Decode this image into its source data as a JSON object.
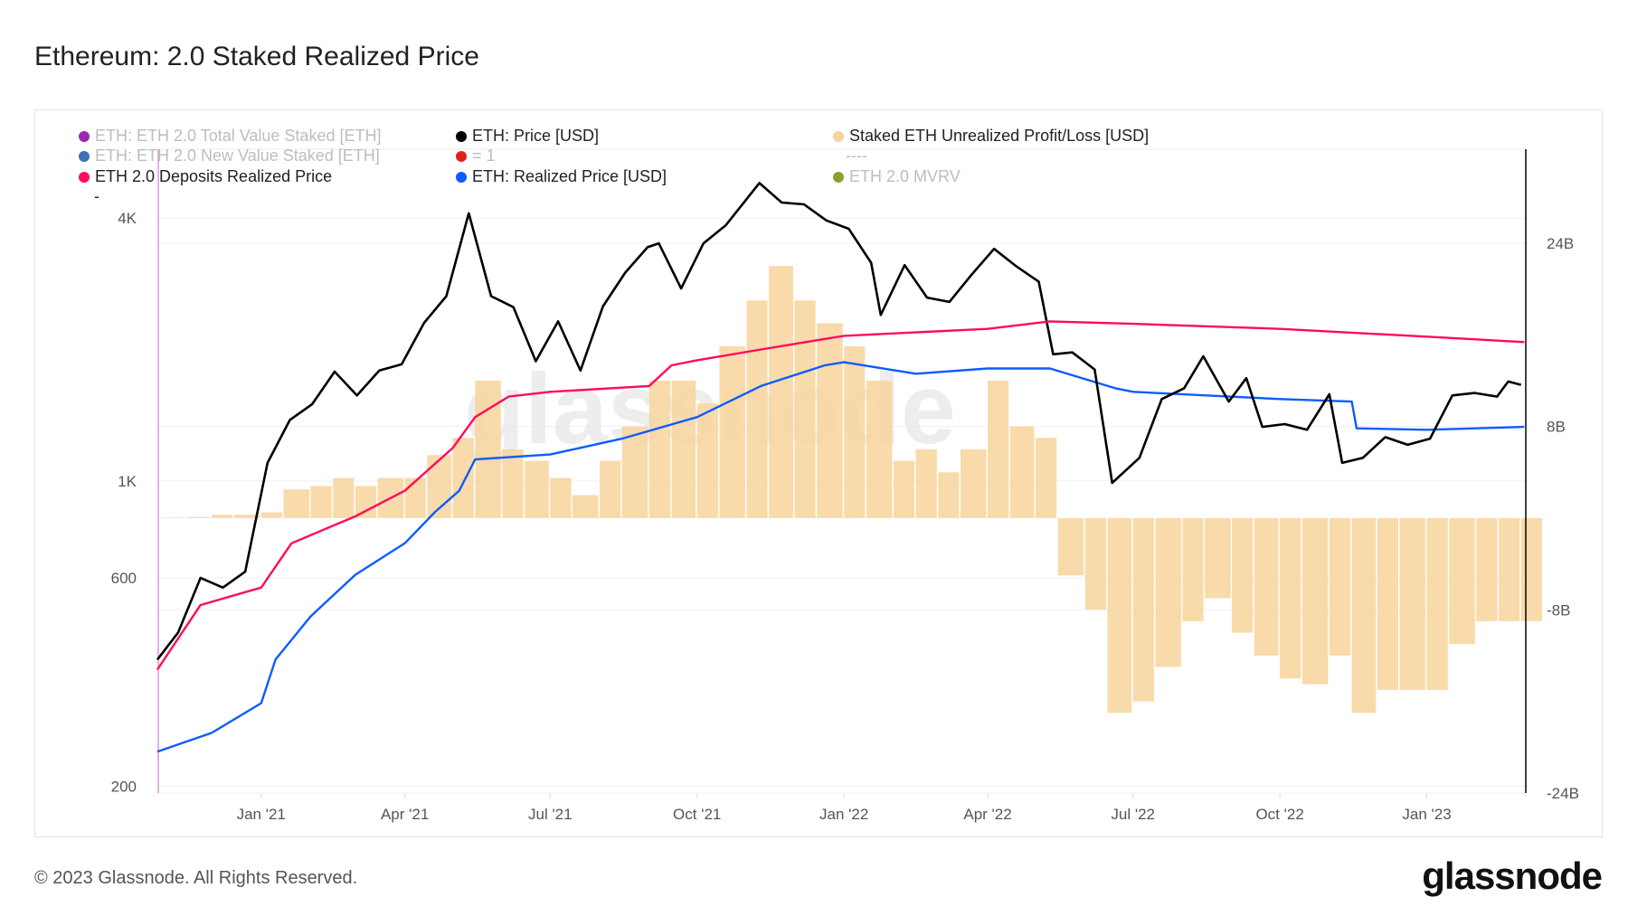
{
  "title": "Ethereum: 2.0 Staked Realized Price",
  "footer": "© 2023 Glassnode. All Rights Reserved.",
  "logo": "glassnode",
  "watermark": "glassnode",
  "legend": [
    {
      "label": "ETH: ETH 2.0 Total Value Staked [ETH]",
      "color": "#9c27b0",
      "active": false
    },
    {
      "label": "ETH: Price [USD]",
      "color": "#000000",
      "active": true
    },
    {
      "label": "Staked ETH Unrealized Profit/Loss [USD]",
      "color": "#f8d39b",
      "active": true
    },
    {
      "label": "ETH: ETH 2.0 New Value Staked [ETH]",
      "color": "#3f6fb5",
      "active": false
    },
    {
      "label": "= 1",
      "color": "#e0221b",
      "active": false
    },
    {
      "label": "----",
      "color": null,
      "active": false
    },
    {
      "label": "ETH 2.0 Deposits Realized Price",
      "color": "#ff0a5c",
      "active": true
    },
    {
      "label": "ETH: Realized Price [USD]",
      "color": "#0a5cff",
      "active": true
    },
    {
      "label": "ETH 2.0 MVRV",
      "color": "#8fa02a",
      "active": false
    },
    {
      "label": "-",
      "color": null,
      "active": true
    }
  ],
  "chart_data": {
    "type": "line",
    "xlim": [
      "2020-10-28",
      "2023-03-04"
    ],
    "x_ticks": [
      {
        "date": "2021-01-01",
        "label": "Jan '21"
      },
      {
        "date": "2021-04-01",
        "label": "Apr '21"
      },
      {
        "date": "2021-07-01",
        "label": "Jul '21"
      },
      {
        "date": "2021-10-01",
        "label": "Oct '21"
      },
      {
        "date": "2022-01-01",
        "label": "Jan '22"
      },
      {
        "date": "2022-04-01",
        "label": "Apr '22"
      },
      {
        "date": "2022-07-01",
        "label": "Jul '22"
      },
      {
        "date": "2022-10-01",
        "label": "Oct '22"
      },
      {
        "date": "2023-01-01",
        "label": "Jan '23"
      }
    ],
    "y_left": {
      "scale": "log",
      "ylim": [
        193,
        5750
      ],
      "ticks": [
        {
          "value": 200,
          "label": "200"
        },
        {
          "value": 600,
          "label": "600"
        },
        {
          "value": 1000,
          "label": "1K"
        },
        {
          "value": 4000,
          "label": "4K"
        }
      ]
    },
    "y_right": {
      "scale": "linear",
      "ylim": [
        -24,
        32.2
      ],
      "unit": "B",
      "ticks": [
        {
          "value": -24,
          "label": "-24B"
        },
        {
          "value": -8,
          "label": "-8B"
        },
        {
          "value": 8,
          "label": "8B"
        },
        {
          "value": 24,
          "label": "24B"
        }
      ]
    },
    "grid": true,
    "legend_position": "top",
    "series": [
      {
        "name": "ETH: Price [USD]",
        "axis": "left",
        "color": "#000000",
        "points": [
          [
            "2020-10-28",
            390
          ],
          [
            "2020-11-10",
            450
          ],
          [
            "2020-11-24",
            600
          ],
          [
            "2020-12-08",
            570
          ],
          [
            "2020-12-22",
            620
          ],
          [
            "2021-01-05",
            1100
          ],
          [
            "2021-01-19",
            1380
          ],
          [
            "2021-02-02",
            1500
          ],
          [
            "2021-02-16",
            1780
          ],
          [
            "2021-03-02",
            1570
          ],
          [
            "2021-03-16",
            1790
          ],
          [
            "2021-03-30",
            1850
          ],
          [
            "2021-04-13",
            2300
          ],
          [
            "2021-04-27",
            2650
          ],
          [
            "2021-05-11",
            4100
          ],
          [
            "2021-05-25",
            2650
          ],
          [
            "2021-06-08",
            2500
          ],
          [
            "2021-06-22",
            1880
          ],
          [
            "2021-07-06",
            2320
          ],
          [
            "2021-07-20",
            1790
          ],
          [
            "2021-08-03",
            2510
          ],
          [
            "2021-08-17",
            3000
          ],
          [
            "2021-08-31",
            3430
          ],
          [
            "2021-09-07",
            3500
          ],
          [
            "2021-09-21",
            2760
          ],
          [
            "2021-10-05",
            3500
          ],
          [
            "2021-10-19",
            3850
          ],
          [
            "2021-11-09",
            4810
          ],
          [
            "2021-11-23",
            4340
          ],
          [
            "2021-12-07",
            4300
          ],
          [
            "2021-12-21",
            3950
          ],
          [
            "2022-01-04",
            3780
          ],
          [
            "2022-01-18",
            3160
          ],
          [
            "2022-01-24",
            2400
          ],
          [
            "2022-02-08",
            3120
          ],
          [
            "2022-02-22",
            2630
          ],
          [
            "2022-03-08",
            2570
          ],
          [
            "2022-03-22",
            2970
          ],
          [
            "2022-04-05",
            3400
          ],
          [
            "2022-04-19",
            3100
          ],
          [
            "2022-05-03",
            2860
          ],
          [
            "2022-05-12",
            1950
          ],
          [
            "2022-05-24",
            1970
          ],
          [
            "2022-06-07",
            1800
          ],
          [
            "2022-06-18",
            990
          ],
          [
            "2022-07-05",
            1130
          ],
          [
            "2022-07-19",
            1540
          ],
          [
            "2022-08-02",
            1630
          ],
          [
            "2022-08-14",
            1930
          ],
          [
            "2022-08-30",
            1520
          ],
          [
            "2022-09-10",
            1720
          ],
          [
            "2022-09-20",
            1330
          ],
          [
            "2022-10-04",
            1350
          ],
          [
            "2022-10-18",
            1310
          ],
          [
            "2022-11-01",
            1580
          ],
          [
            "2022-11-09",
            1100
          ],
          [
            "2022-11-22",
            1130
          ],
          [
            "2022-12-06",
            1260
          ],
          [
            "2022-12-20",
            1210
          ],
          [
            "2023-01-03",
            1250
          ],
          [
            "2023-01-17",
            1570
          ],
          [
            "2023-01-31",
            1590
          ],
          [
            "2023-02-14",
            1560
          ],
          [
            "2023-02-21",
            1690
          ],
          [
            "2023-03-01",
            1660
          ]
        ]
      },
      {
        "name": "ETH 2.0 Deposits Realized Price",
        "axis": "left",
        "color": "#ff0a5c",
        "points": [
          [
            "2020-10-28",
            370
          ],
          [
            "2020-11-24",
            520
          ],
          [
            "2021-01-01",
            570
          ],
          [
            "2021-01-20",
            720
          ],
          [
            "2021-03-01",
            830
          ],
          [
            "2021-04-01",
            950
          ],
          [
            "2021-05-01",
            1190
          ],
          [
            "2021-05-15",
            1400
          ],
          [
            "2021-06-05",
            1560
          ],
          [
            "2021-07-01",
            1600
          ],
          [
            "2021-09-01",
            1650
          ],
          [
            "2021-09-15",
            1840
          ],
          [
            "2021-10-01",
            1890
          ],
          [
            "2021-11-10",
            2000
          ],
          [
            "2021-12-15",
            2100
          ],
          [
            "2022-01-01",
            2150
          ],
          [
            "2022-04-01",
            2230
          ],
          [
            "2022-05-10",
            2320
          ],
          [
            "2022-07-01",
            2290
          ],
          [
            "2022-10-01",
            2230
          ],
          [
            "2023-01-01",
            2140
          ],
          [
            "2023-03-03",
            2080
          ]
        ]
      },
      {
        "name": "ETH: Realized Price [USD]",
        "axis": "left",
        "color": "#0a5cff",
        "points": [
          [
            "2020-10-28",
            240
          ],
          [
            "2020-12-01",
            265
          ],
          [
            "2021-01-01",
            310
          ],
          [
            "2021-01-10",
            390
          ],
          [
            "2021-02-01",
            490
          ],
          [
            "2021-03-01",
            610
          ],
          [
            "2021-04-01",
            720
          ],
          [
            "2021-04-20",
            850
          ],
          [
            "2021-05-05",
            950
          ],
          [
            "2021-05-15",
            1120
          ],
          [
            "2021-07-01",
            1150
          ],
          [
            "2021-08-15",
            1250
          ],
          [
            "2021-10-01",
            1400
          ],
          [
            "2021-11-10",
            1650
          ],
          [
            "2021-12-20",
            1840
          ],
          [
            "2022-01-01",
            1870
          ],
          [
            "2022-02-15",
            1760
          ],
          [
            "2022-04-01",
            1810
          ],
          [
            "2022-05-10",
            1810
          ],
          [
            "2022-06-20",
            1630
          ],
          [
            "2022-07-01",
            1600
          ],
          [
            "2022-10-01",
            1540
          ],
          [
            "2022-11-15",
            1520
          ],
          [
            "2022-11-18",
            1320
          ],
          [
            "2023-01-01",
            1310
          ],
          [
            "2023-03-03",
            1330
          ]
        ]
      },
      {
        "name": "Staked ETH Unrealized Profit/Loss [USD]",
        "axis": "right",
        "type": "bar",
        "color": "#f8d39b",
        "points": [
          [
            "2020-11-01",
            0.05
          ],
          [
            "2020-11-15",
            0.1
          ],
          [
            "2020-12-01",
            0.3
          ],
          [
            "2020-12-15",
            0.3
          ],
          [
            "2021-01-01",
            0.5
          ],
          [
            "2021-01-15",
            2.5
          ],
          [
            "2021-02-01",
            2.8
          ],
          [
            "2021-02-15",
            3.5
          ],
          [
            "2021-03-01",
            2.8
          ],
          [
            "2021-03-15",
            3.5
          ],
          [
            "2021-04-01",
            3.5
          ],
          [
            "2021-04-15",
            5.5
          ],
          [
            "2021-05-01",
            7
          ],
          [
            "2021-05-15",
            12
          ],
          [
            "2021-06-01",
            6
          ],
          [
            "2021-06-15",
            5
          ],
          [
            "2021-07-01",
            3.5
          ],
          [
            "2021-07-15",
            2
          ],
          [
            "2021-08-01",
            5
          ],
          [
            "2021-08-15",
            8
          ],
          [
            "2021-09-01",
            12
          ],
          [
            "2021-09-15",
            12
          ],
          [
            "2021-10-01",
            10
          ],
          [
            "2021-10-15",
            15
          ],
          [
            "2021-11-01",
            19
          ],
          [
            "2021-11-15",
            22
          ],
          [
            "2021-12-01",
            19
          ],
          [
            "2021-12-15",
            17
          ],
          [
            "2022-01-01",
            15
          ],
          [
            "2022-01-15",
            12
          ],
          [
            "2022-02-01",
            5
          ],
          [
            "2022-02-15",
            6
          ],
          [
            "2022-03-01",
            4
          ],
          [
            "2022-03-15",
            6
          ],
          [
            "2022-04-01",
            12
          ],
          [
            "2022-04-15",
            8
          ],
          [
            "2022-05-01",
            7
          ],
          [
            "2022-05-15",
            -5
          ],
          [
            "2022-06-01",
            -8
          ],
          [
            "2022-06-15",
            -17
          ],
          [
            "2022-07-01",
            -16
          ],
          [
            "2022-07-15",
            -13
          ],
          [
            "2022-08-01",
            -9
          ],
          [
            "2022-08-15",
            -7
          ],
          [
            "2022-09-01",
            -10
          ],
          [
            "2022-09-15",
            -12
          ],
          [
            "2022-10-01",
            -14
          ],
          [
            "2022-10-15",
            -14.5
          ],
          [
            "2022-11-01",
            -12
          ],
          [
            "2022-11-15",
            -17
          ],
          [
            "2022-12-01",
            -15
          ],
          [
            "2022-12-15",
            -15
          ],
          [
            "2023-01-01",
            -15
          ],
          [
            "2023-01-15",
            -11
          ],
          [
            "2023-02-01",
            -9
          ],
          [
            "2023-02-15",
            -9
          ],
          [
            "2023-03-01",
            -9
          ]
        ]
      }
    ]
  }
}
